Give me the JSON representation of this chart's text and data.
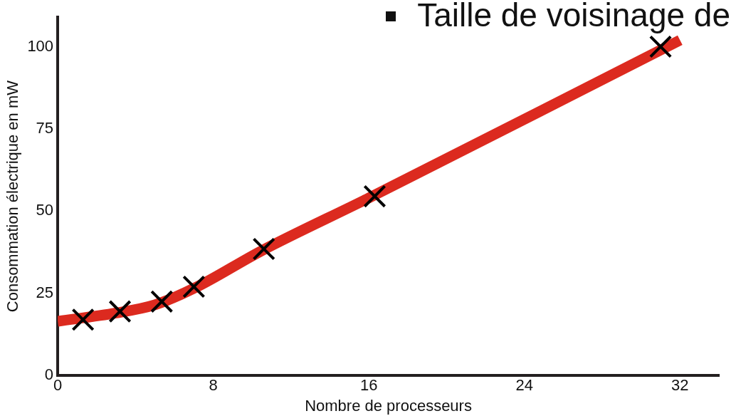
{
  "chart_data": {
    "type": "line",
    "title": "Taille de voisinage de",
    "xlabel": "Nombre de processeurs",
    "ylabel": "Consommation électrique en mW",
    "xlim": [
      0,
      34
    ],
    "ylim": [
      0,
      109
    ],
    "xticks": [
      0,
      8,
      16,
      24,
      32
    ],
    "yticks": [
      0,
      25,
      50,
      75,
      100
    ],
    "grid": false,
    "legend": false,
    "series": [
      {
        "color": "#dc2a1f",
        "x": [
          0,
          3,
          5,
          7,
          10.5,
          16,
          32
        ],
        "values": [
          16.5,
          19,
          21.5,
          26.5,
          38,
          54,
          102
        ],
        "marker": "none",
        "line_style": "solid"
      },
      {
        "type": "scatter",
        "color": "#000000",
        "x": [
          1.3,
          3.2,
          5.35,
          7,
          10.6,
          16.3,
          31
        ],
        "values": [
          17,
          19.5,
          22.5,
          27,
          38.5,
          54.5,
          100
        ],
        "marker": "cross"
      }
    ]
  }
}
